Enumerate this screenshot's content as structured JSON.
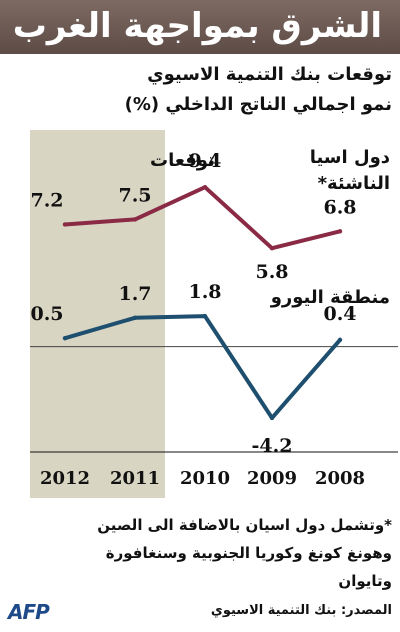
{
  "header": {
    "title": "الشرق بمواجهة الغرب",
    "subtitle1": "توقعات بنك التنمية الاسيوي",
    "subtitle2": "نمو اجمالي الناتج الداخلي (%)"
  },
  "chart_data": {
    "type": "line",
    "categories": [
      "2012",
      "2011",
      "2010",
      "2009",
      "2008"
    ],
    "forecast_label": "توقعات",
    "forecast_categories": [
      "2012",
      "2011"
    ],
    "ylim": [
      -5.5,
      11
    ],
    "zero_line": true,
    "grid": false,
    "series": [
      {
        "name": "دول اسيا الناشئة*",
        "name_line1": "دول اسيا",
        "name_line2": "الناشئة*",
        "color": "#8a2a45",
        "values": [
          7.2,
          7.5,
          9.4,
          5.8,
          6.8
        ],
        "labels": [
          "7.2",
          "7.5",
          "9.4",
          "5.8",
          "6.8"
        ]
      },
      {
        "name": "منطقة اليورو",
        "color": "#1e4f6e",
        "values": [
          0.5,
          1.7,
          1.8,
          -4.2,
          0.4
        ],
        "labels": [
          "0.5",
          "1.7",
          "1.8",
          "-4.2",
          "0.4"
        ]
      }
    ],
    "forecast_band_color": "#d9d5c3"
  },
  "footnote": {
    "line1": "*وتشمل دول اسيان بالاضافة الى الصين",
    "line2": "وهونغ كونغ وكوريا الجنوبية وسنغافورة",
    "line3": "وتايوان"
  },
  "source": "المصدر: بنك التنمية الاسيوي",
  "logo": "AFP"
}
